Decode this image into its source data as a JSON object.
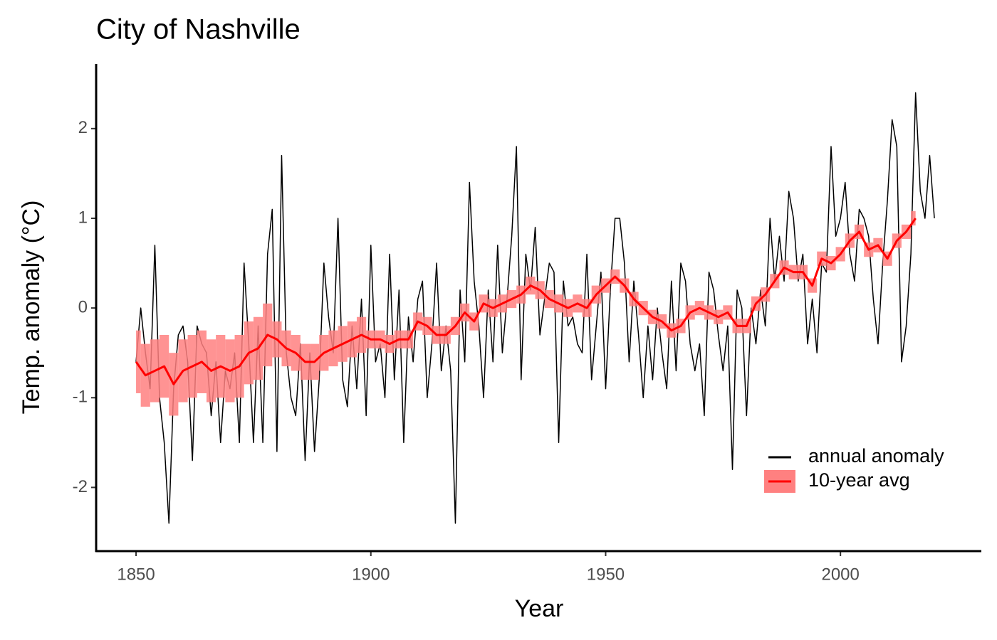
{
  "chart_data": {
    "type": "line",
    "title": "City of Nashville",
    "x_label": "Year",
    "y_label": "Temp. anomaly (°C)",
    "xlim": [
      1841.5,
      2030
    ],
    "xticks": [
      1850,
      1900,
      1950,
      2000
    ],
    "ylim": [
      -2.71,
      2.72
    ],
    "yticks": [
      -2,
      -1,
      0,
      1,
      2
    ],
    "grid": false,
    "legend": "bottom-right",
    "series": [
      {
        "name": "annual anomaly",
        "color": "#000000",
        "x": [
          1850,
          1851,
          1852,
          1853,
          1854,
          1855,
          1856,
          1857,
          1858,
          1859,
          1860,
          1861,
          1862,
          1863,
          1864,
          1865,
          1866,
          1867,
          1868,
          1869,
          1870,
          1871,
          1872,
          1873,
          1874,
          1875,
          1876,
          1877,
          1878,
          1879,
          1880,
          1881,
          1882,
          1883,
          1884,
          1885,
          1886,
          1887,
          1888,
          1889,
          1890,
          1891,
          1892,
          1893,
          1894,
          1895,
          1896,
          1897,
          1898,
          1899,
          1900,
          1901,
          1902,
          1903,
          1904,
          1905,
          1906,
          1907,
          1908,
          1909,
          1910,
          1911,
          1912,
          1913,
          1914,
          1915,
          1916,
          1917,
          1918,
          1919,
          1920,
          1921,
          1922,
          1923,
          1924,
          1925,
          1926,
          1927,
          1928,
          1929,
          1930,
          1931,
          1932,
          1933,
          1934,
          1935,
          1936,
          1937,
          1938,
          1939,
          1940,
          1941,
          1942,
          1943,
          1944,
          1945,
          1946,
          1947,
          1948,
          1949,
          1950,
          1951,
          1952,
          1953,
          1954,
          1955,
          1956,
          1957,
          1958,
          1959,
          1960,
          1961,
          1962,
          1963,
          1964,
          1965,
          1966,
          1967,
          1968,
          1969,
          1970,
          1971,
          1972,
          1973,
          1974,
          1975,
          1976,
          1977,
          1978,
          1979,
          1980,
          1981,
          1982,
          1983,
          1984,
          1985,
          1986,
          1987,
          1988,
          1989,
          1990,
          1991,
          1992,
          1993,
          1994,
          1995,
          1996,
          1997,
          1998,
          1999,
          2000,
          2001,
          2002,
          2003,
          2004,
          2005,
          2006,
          2007,
          2008,
          2009,
          2010,
          2011,
          2012,
          2013,
          2014,
          2015,
          2016,
          2017,
          2018,
          2019,
          2020
        ],
        "values": [
          -0.6,
          0.0,
          -0.5,
          -0.9,
          0.7,
          -1.0,
          -1.5,
          -2.4,
          -0.9,
          -0.3,
          -0.2,
          -0.6,
          -1.7,
          -0.2,
          -0.4,
          -0.5,
          -1.2,
          -0.6,
          -1.5,
          -0.7,
          -0.9,
          -0.5,
          -1.5,
          0.5,
          -0.4,
          -1.5,
          -0.2,
          -1.5,
          0.6,
          1.1,
          -1.6,
          1.7,
          -0.5,
          -1.0,
          -1.2,
          -0.4,
          -1.7,
          -0.5,
          -1.6,
          -0.8,
          0.5,
          -0.1,
          -0.5,
          1.0,
          -0.8,
          -1.1,
          -0.2,
          -0.9,
          0.1,
          -1.2,
          0.7,
          -0.6,
          -0.4,
          -1.0,
          0.6,
          -0.8,
          0.2,
          -1.5,
          -0.1,
          -0.6,
          0.1,
          0.3,
          -1.0,
          -0.4,
          0.5,
          -0.7,
          -0.2,
          -0.7,
          -2.4,
          0.2,
          -0.6,
          1.4,
          0.3,
          -0.2,
          -1.0,
          0.2,
          -0.6,
          0.7,
          -0.5,
          0.1,
          0.8,
          1.8,
          -0.8,
          0.6,
          0.2,
          0.9,
          -0.3,
          0.1,
          0.5,
          0.4,
          -1.5,
          0.3,
          -0.2,
          -0.1,
          -0.4,
          -0.5,
          0.6,
          -0.8,
          -0.2,
          0.4,
          -0.9,
          0.2,
          1.0,
          1.0,
          0.5,
          -0.6,
          0.3,
          -0.3,
          -1.0,
          -0.2,
          -0.8,
          0.0,
          -0.5,
          -0.9,
          0.3,
          -0.7,
          0.5,
          0.3,
          -0.4,
          -0.7,
          -0.4,
          -1.2,
          0.4,
          0.2,
          -0.3,
          -0.7,
          -0.2,
          -1.8,
          0.2,
          0.0,
          -1.2,
          0.0,
          -0.4,
          0.2,
          -0.2,
          1.0,
          0.3,
          0.8,
          0.3,
          1.3,
          1.0,
          0.3,
          0.6,
          -0.4,
          0.1,
          -0.5,
          0.5,
          0.4,
          1.8,
          0.8,
          1.0,
          1.4,
          0.6,
          0.3,
          1.1,
          1.0,
          0.8,
          0.1,
          -0.4,
          0.5,
          1.2,
          2.1,
          1.8,
          -0.6,
          -0.2,
          0.6,
          2.4,
          1.3,
          1.0,
          1.7,
          1.0
        ]
      },
      {
        "name": "10-year avg",
        "color": "#ff0000",
        "band_color": "#ff8080",
        "x": [
          1850,
          1852,
          1854,
          1856,
          1858,
          1860,
          1862,
          1864,
          1866,
          1868,
          1870,
          1872,
          1874,
          1876,
          1878,
          1880,
          1882,
          1884,
          1886,
          1888,
          1890,
          1892,
          1894,
          1896,
          1898,
          1900,
          1902,
          1904,
          1906,
          1908,
          1910,
          1912,
          1914,
          1916,
          1918,
          1920,
          1922,
          1924,
          1926,
          1928,
          1930,
          1932,
          1934,
          1936,
          1938,
          1940,
          1942,
          1944,
          1946,
          1948,
          1950,
          1952,
          1954,
          1956,
          1958,
          1960,
          1962,
          1964,
          1966,
          1968,
          1970,
          1972,
          1974,
          1976,
          1978,
          1980,
          1982,
          1984,
          1986,
          1988,
          1990,
          1992,
          1994,
          1996,
          1998,
          2000,
          2002,
          2004,
          2006,
          2008,
          2010,
          2012,
          2014,
          2016
        ],
        "values": [
          -0.6,
          -0.75,
          -0.7,
          -0.65,
          -0.85,
          -0.7,
          -0.65,
          -0.6,
          -0.7,
          -0.65,
          -0.7,
          -0.65,
          -0.5,
          -0.45,
          -0.3,
          -0.35,
          -0.45,
          -0.5,
          -0.6,
          -0.6,
          -0.5,
          -0.45,
          -0.4,
          -0.35,
          -0.3,
          -0.35,
          -0.35,
          -0.4,
          -0.35,
          -0.35,
          -0.15,
          -0.2,
          -0.3,
          -0.3,
          -0.2,
          -0.05,
          -0.15,
          0.05,
          0.0,
          0.05,
          0.1,
          0.15,
          0.25,
          0.2,
          0.1,
          0.05,
          0.0,
          0.05,
          0.0,
          0.15,
          0.25,
          0.35,
          0.25,
          0.1,
          0.0,
          -0.1,
          -0.15,
          -0.25,
          -0.2,
          -0.05,
          0.0,
          -0.05,
          -0.1,
          -0.05,
          -0.2,
          -0.2,
          0.05,
          0.15,
          0.3,
          0.45,
          0.4,
          0.4,
          0.25,
          0.55,
          0.5,
          0.6,
          0.75,
          0.85,
          0.65,
          0.7,
          0.55,
          0.75,
          0.85,
          1.0
        ],
        "error": [
          0.35,
          0.35,
          0.35,
          0.35,
          0.35,
          0.35,
          0.35,
          0.35,
          0.35,
          0.35,
          0.35,
          0.35,
          0.35,
          0.35,
          0.35,
          0.2,
          0.2,
          0.2,
          0.2,
          0.2,
          0.2,
          0.2,
          0.2,
          0.2,
          0.2,
          0.1,
          0.1,
          0.1,
          0.1,
          0.1,
          0.1,
          0.1,
          0.1,
          0.1,
          0.1,
          0.1,
          0.1,
          0.1,
          0.1,
          0.1,
          0.1,
          0.1,
          0.1,
          0.1,
          0.1,
          0.1,
          0.1,
          0.1,
          0.1,
          0.1,
          0.08,
          0.08,
          0.08,
          0.08,
          0.08,
          0.08,
          0.08,
          0.08,
          0.08,
          0.08,
          0.08,
          0.08,
          0.08,
          0.08,
          0.08,
          0.08,
          0.08,
          0.08,
          0.08,
          0.08,
          0.08,
          0.08,
          0.08,
          0.08,
          0.08,
          0.08,
          0.08,
          0.08,
          0.08,
          0.08,
          0.08,
          0.08,
          0.08,
          0.08
        ]
      }
    ]
  }
}
